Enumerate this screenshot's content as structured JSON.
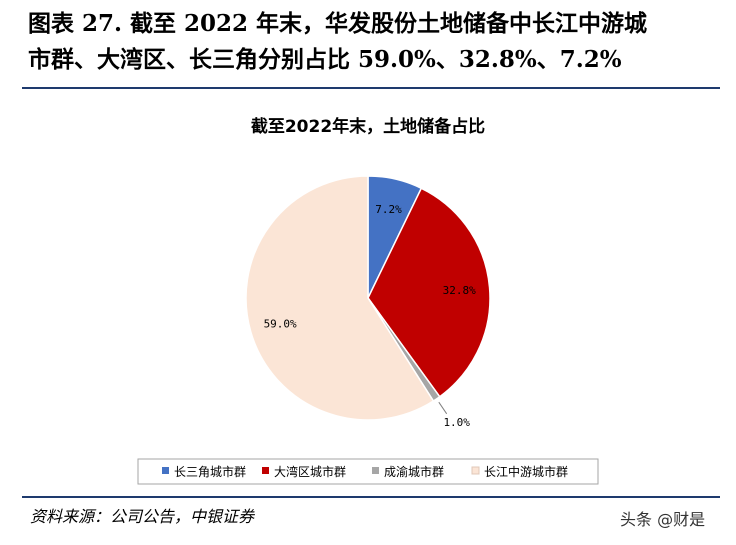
{
  "figure": {
    "title_line1": "图表 27. 截至 2022 年末，华发股份土地储备中长江中游城",
    "title_line2": "市群、大湾区、长三角分别占比 59.0%、32.8%、7.2%",
    "source": "资料来源：公司公告，中银证券",
    "watermark": "头条 @财是"
  },
  "chart_data": {
    "type": "pie",
    "title": "截至2022年末，土地储备占比",
    "legend_position": "bottom",
    "slices": [
      {
        "name": "长三角城市群",
        "value": 7.2,
        "label": "7.2%",
        "color": "#4472c4"
      },
      {
        "name": "大湾区城市群",
        "value": 32.8,
        "label": "32.8%",
        "color": "#c00000"
      },
      {
        "name": "成渝城市群",
        "value": 1.0,
        "label": "1.0%",
        "color": "#a6a6a6"
      },
      {
        "name": "长江中游城市群",
        "value": 59.0,
        "label": "59.0%",
        "color": "#fbe5d6"
      }
    ]
  }
}
